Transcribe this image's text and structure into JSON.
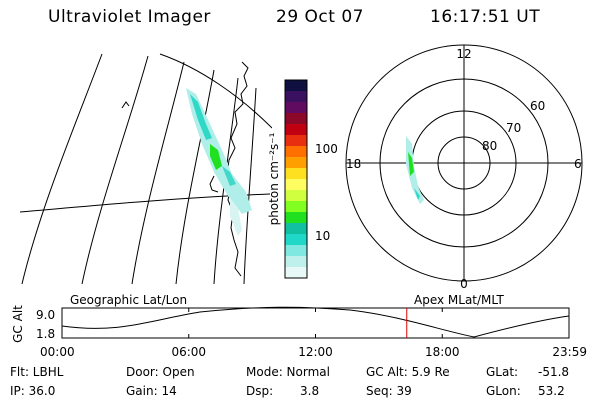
{
  "header": {
    "title": "Ultraviolet Imager",
    "date": "29 Oct 07",
    "time": "16:17:51 UT"
  },
  "colorbar": {
    "unit_label": "photon cm⁻²s⁻¹",
    "tick_100": "100",
    "tick_10": "10",
    "colors": [
      "#101040",
      "#3a1060",
      "#600a60",
      "#8c0828",
      "#c00010",
      "#e83010",
      "#ff7000",
      "#ffa000",
      "#ffe020",
      "#fffd60",
      "#d0ff40",
      "#80ff20",
      "#20e020",
      "#10c0a0",
      "#20d8c8",
      "#80e8e0",
      "#c0f0ec",
      "#e8f8f6"
    ]
  },
  "polar": {
    "labels": {
      "top": "12",
      "bottom": "0",
      "left": "18",
      "right": "6",
      "r60": "60",
      "r70": "70",
      "r80": "80"
    }
  },
  "timeline": {
    "y_axis_label": "GC Alt",
    "y_top": "9.0",
    "y_bottom": "1.8",
    "left_title": "Geographic Lat/Lon",
    "right_title": "Apex  MLat/MLT",
    "x_ticks": [
      "00:00",
      "06:00",
      "12:00",
      "18:00",
      "23:59"
    ],
    "current_time_fraction": 0.68,
    "marker_color": "#e00000"
  },
  "info": {
    "flt": "Flt: LBHL",
    "ip": "IP: 36.0",
    "door": "Door: Open",
    "gain": "Gain: 14",
    "mode": "Mode: Normal",
    "dsp_label": "Dsp:",
    "dsp_value": "3.8",
    "gc_alt": "GC Alt: 5.9 Re",
    "seq": "Seq: 39",
    "glat_label": "GLat:",
    "glat_value": "-51.8",
    "glon_label": "GLon:",
    "glon_value": "53.2"
  }
}
